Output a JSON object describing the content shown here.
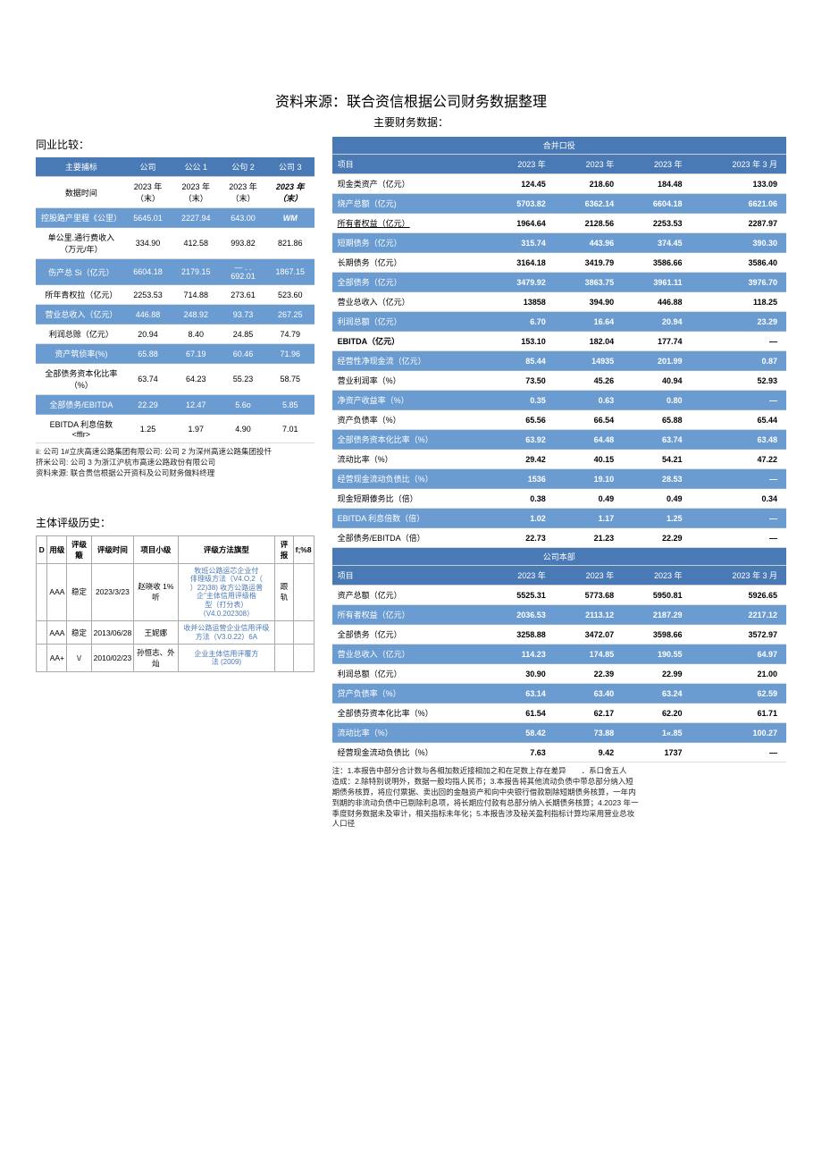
{
  "title": "资料来源：联合资信根据公司财务数据整理",
  "subtitle": "主要财务数据：",
  "left": {
    "compare_label": "同业比较：",
    "comp_header": {
      "col1": "主要捕标",
      "c": "公司",
      "c1": "公公 1",
      "c2": "公句 2",
      "c3": "公司 3"
    },
    "comp_time_row": {
      "label": "数据时间",
      "c": "2023 年（末）",
      "c1": "2023 年（末）",
      "c2": "2023 年（末）",
      "c3": "2023 年（末）"
    },
    "comp_rows": [
      {
        "blue": true,
        "label": "控股路产里程《公里）",
        "v": [
          "5645.01",
          "2227.94",
          "643.00",
          "WM"
        ],
        "wm": true
      },
      {
        "blue": false,
        "label": "单公里.通行费收入（万元/年）",
        "v": [
          "334.90",
          "412.58",
          "993.82",
          "821.86"
        ]
      },
      {
        "blue": true,
        "label": "伤产总 Si（亿元）",
        "v": [
          "6604.18",
          "2179.15",
          "— . . 692.01",
          "1867.15"
        ]
      },
      {
        "blue": false,
        "label": "所年青权拉（亿元）",
        "v": [
          "2253.53",
          "714.88",
          "273.61",
          "523.60"
        ]
      },
      {
        "blue": true,
        "label": "营业总收入（亿元）",
        "v": [
          "446.88",
          "248.92",
          "93.73",
          "267.25"
        ]
      },
      {
        "blue": false,
        "label": "利润总赊（亿元）",
        "v": [
          "20.94",
          "8.40",
          "24.85",
          "74.79"
        ]
      },
      {
        "blue": true,
        "label": "资产筑侦率(%)",
        "v": [
          "65.88",
          "67.19",
          "60.46",
          "71.96"
        ]
      },
      {
        "blue": false,
        "label": "全部债务资本化比率（%）",
        "v": [
          "63.74",
          "64.23",
          "55.23",
          "58.75"
        ]
      },
      {
        "blue": true,
        "label": "全部债务/EBITDA",
        "v": [
          "22.29",
          "12.47",
          "5.6o",
          "5.85"
        ]
      },
      {
        "blue": false,
        "label": "EBITDA 利息倍数 <fflr>",
        "v": [
          "1.25",
          "1.97",
          "4.90",
          "7.01"
        ]
      }
    ],
    "comp_foot": "ii: 公司 1#立庆高速公路集团有限公司:  公司 2 为深州高速公路集团投忏\n挤米公司:  公司 3 为浙江沪杭市高速公路政份有限公司\n资料来源: 联合贵信根据公开资科及公司财务做料终理",
    "rating_label": "主体评级历史：",
    "rating_header": {
      "c0": "D",
      "c1": "用级",
      "c2": "评级簸",
      "c3": "评级时间",
      "c4": "项目小级",
      "c5": "评级方法旗型",
      "c6": "评报",
      "c7": "f;%8"
    },
    "rating_rows": [
      {
        "grade": "AAA",
        "outlook": "稳定",
        "date": "2023/3/23",
        "analyst": "赵晓收 1% 听",
        "method": "牧班公路运芯企业付\n俳理级方法（V4.O,2（\n）22)38) 收方公路运普\n企\"主体信用评级楷\n型（打分表）\n（V4.0.202308）",
        "rep": "跟轨"
      },
      {
        "grade": "AAA",
        "outlook": "稳定",
        "date": "2013/06/28",
        "analyst": "王妮娜",
        "method": "收并公路运营企业信用评级方法（V3.0.22）6A",
        "rep": ""
      },
      {
        "grade": "AA+",
        "outlook": "\\/",
        "date": "2010/02/23",
        "analyst": "孙恒志、外灿",
        "method": "企业主体信用评覆方\n法 (2009)",
        "rep": ""
      }
    ]
  },
  "right": {
    "header_span1": "合并口役",
    "header_cols": {
      "c0": "项目",
      "c1": "2023 年",
      "c2": "2023 年",
      "c3": "2023 年",
      "c4": "2023 年 3 月"
    },
    "rows1": [
      {
        "blue": false,
        "label": "现金类资产（亿元）",
        "v": [
          "124.45",
          "218.60",
          "184.48",
          "133.09"
        ]
      },
      {
        "blue": true,
        "label": "烧产总额（亿元)",
        "v": [
          "5703.82",
          "6362.14",
          "6604.18",
          "6621.06"
        ]
      },
      {
        "blue": false,
        "label": "所有者权益（亿元）",
        "ul": true,
        "v": [
          "1964.64",
          "2128.56",
          "2253.53",
          "2287.97"
        ]
      },
      {
        "blue": true,
        "label": "短期债务（亿元）",
        "v": [
          "315.74",
          "443.96",
          "374.45",
          "390.30"
        ]
      },
      {
        "blue": false,
        "label": "长期债务（亿元）",
        "v": [
          "3164.18",
          "3419.79",
          "3586.66",
          "3586.40"
        ]
      },
      {
        "blue": true,
        "label": "全部债务（亿元）",
        "v": [
          "3479.92",
          "3863.75",
          "3961.11",
          "3976.70"
        ]
      },
      {
        "blue": false,
        "label": "营业总收入（亿元）",
        "v": [
          "13858",
          "394.90",
          "446.88",
          "118.25"
        ]
      },
      {
        "blue": true,
        "label": "利润总额（亿元）",
        "v": [
          "6.70",
          "16.64",
          "20.94",
          "23.29"
        ]
      },
      {
        "blue": false,
        "label": "EBITDA（亿元）",
        "bold": true,
        "v": [
          "153.10",
          "182.04",
          "177.74",
          "—"
        ]
      },
      {
        "blue": true,
        "label": "经营性净现金流（亿元）",
        "v": [
          "85.44",
          "14935",
          "201.99",
          "0.87"
        ]
      },
      {
        "blue": false,
        "label": "营业利润率（%）",
        "v": [
          "73.50",
          "45.26",
          "40.94",
          "52.93"
        ]
      },
      {
        "blue": true,
        "label": "净资产收益率（%）",
        "v": [
          "0.35",
          "0.63",
          "0.80",
          "—"
        ]
      },
      {
        "blue": false,
        "label": "资产负债率（%）",
        "v": [
          "65.56",
          "66.54",
          "65.88",
          "65.44"
        ]
      },
      {
        "blue": true,
        "label": "全部债务资本化比率（%）",
        "v": [
          "63.92",
          "64.48",
          "63.74",
          "63.48"
        ]
      },
      {
        "blue": false,
        "label": "流动比率（%）",
        "v": [
          "29.42",
          "40.15",
          "54.21",
          "47.22"
        ]
      },
      {
        "blue": true,
        "label": "经营现金流动负债比（%）",
        "v": [
          "1536",
          "19.10",
          "28.53",
          "—"
        ]
      },
      {
        "blue": false,
        "label": "现金短期傣务比（倍）",
        "v": [
          "0.38",
          "0.49",
          "0.49",
          "0.34"
        ]
      },
      {
        "blue": true,
        "label": "EBITDA 利息倍数（倍）",
        "v": [
          "1.02",
          "1.17",
          "1.25",
          "—"
        ]
      },
      {
        "blue": false,
        "label": "全部债务/EBITDA（倍）",
        "v": [
          "22.73",
          "21.23",
          "22.29",
          "—"
        ]
      }
    ],
    "header_span2": "公司本部",
    "rows2": [
      {
        "blue": false,
        "label": "资产总额（亿元）",
        "v": [
          "5525.31",
          "5773.68",
          "5950.81",
          "5926.65"
        ]
      },
      {
        "blue": true,
        "label": "所有者权益（亿元）",
        "v": [
          "2036.53",
          "2113.12",
          "2187.29",
          "2217.12"
        ]
      },
      {
        "blue": false,
        "label": "全部债务（亿元）",
        "v": [
          "3258.88",
          "3472.07",
          "3598.66",
          "3572.97"
        ]
      },
      {
        "blue": true,
        "label": "营业总收入（亿元）",
        "v": [
          "114.23",
          "174.85",
          "190.55",
          "64.97"
        ]
      },
      {
        "blue": false,
        "label": "利润总额（亿元）",
        "v": [
          "30.90",
          "22.39",
          "22.99",
          "21.00"
        ]
      },
      {
        "blue": true,
        "label": "贷产负债率（%）",
        "v": [
          "63.14",
          "63.40",
          "63.24",
          "62.59"
        ]
      },
      {
        "blue": false,
        "label": "全部债芬资本化比率（%）",
        "v": [
          "61.54",
          "62.17",
          "62.20",
          "61.71"
        ]
      },
      {
        "blue": true,
        "label": "流动比率（%）",
        "v": [
          "58.42",
          "73.88",
          "1«.85",
          "100.27"
        ]
      },
      {
        "blue": false,
        "label": "经营现金流动负债比（%）",
        "v": [
          "7.63",
          "9.42",
          "1737",
          "—"
        ]
      }
    ],
    "foot": "注：1.本报告中部分合计数与各相加数近接相加之和在足数上存在差异　　．系口舍五人\n造成：2.除特别说明外，数据一般均指人民币；3.本报告将其他流动负债中带总部分纳入短\n期债务核算，将应付票据、卖出回的金融资产和向中央银行借款剔除短期债务核算，一年内\n到期的非流动负债中已剔除利息项，将长期应付款有总部分纳入长期债务核算；4.2023 年一\n季度财务数据未及审计，相关指标未年化；5.本报告涉及秘关盈利指标计算均采用营业总妆\n人口径"
  }
}
